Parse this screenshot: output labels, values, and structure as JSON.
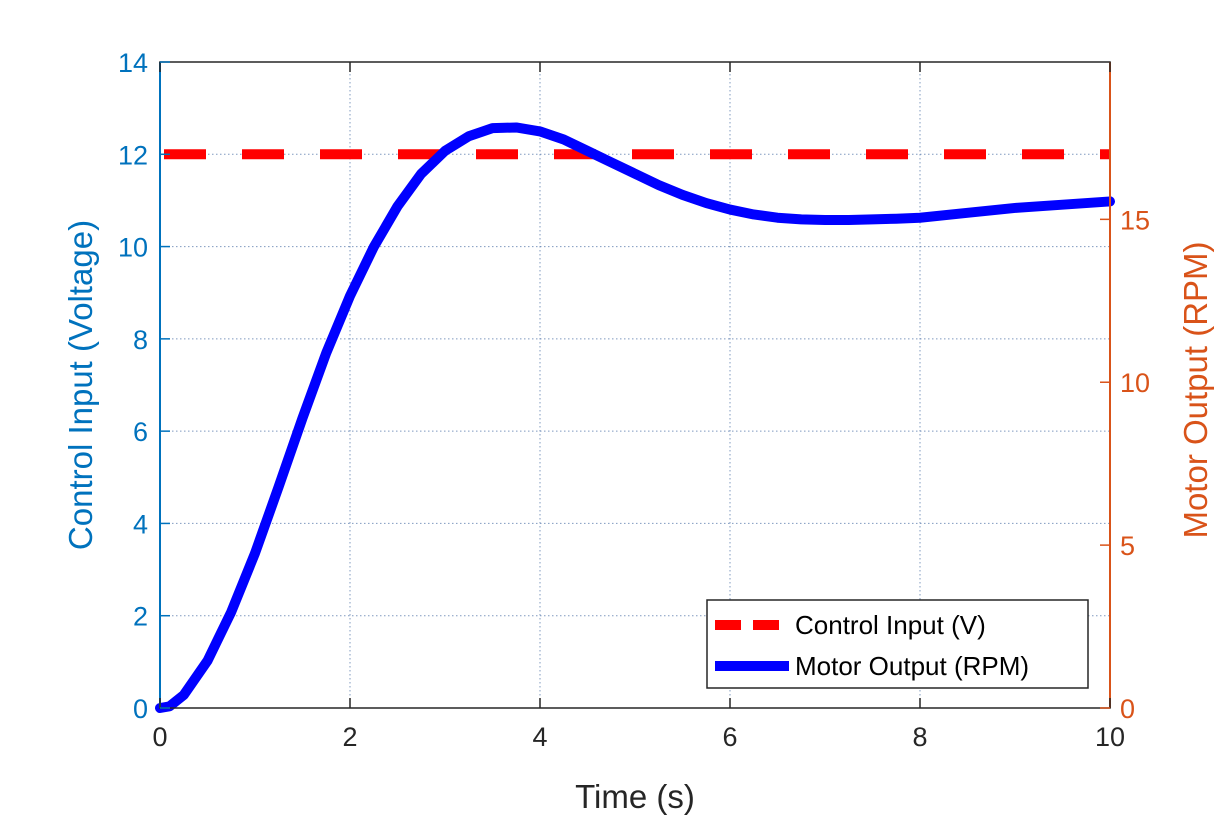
{
  "chart_data": {
    "type": "line",
    "title": "",
    "xlabel": "Time (s)",
    "ylabel_left": "Control Input (Voltage)",
    "ylabel_right": "Motor Output (RPM)",
    "xlim": [
      0,
      10
    ],
    "ylim_left": [
      0,
      14
    ],
    "ylim_right": [
      0,
      19.83
    ],
    "x_ticks": [
      "0",
      "2",
      "4",
      "6",
      "8",
      "10"
    ],
    "y_left_ticks": [
      "0",
      "2",
      "4",
      "6",
      "8",
      "10",
      "12",
      "14"
    ],
    "y_right_ticks": [
      "0",
      "5",
      "10",
      "15"
    ],
    "grid": true,
    "legend_position": "bottom-right",
    "colors": {
      "left_axis": "#0072BD",
      "right_axis": "#D95319",
      "control_input": "#FF0000",
      "motor_output": "#0000FF",
      "grid": "#4A6FA5"
    },
    "series": [
      {
        "name": "Control Input (V)",
        "axis": "left",
        "style": "dashed",
        "x": [
          0,
          10
        ],
        "y": [
          12,
          12
        ]
      },
      {
        "name": "Motor Output (RPM)",
        "axis": "right",
        "style": "solid",
        "x": [
          0,
          0.1,
          0.25,
          0.5,
          0.75,
          1.0,
          1.25,
          1.5,
          1.75,
          2.0,
          2.25,
          2.5,
          2.75,
          3.0,
          3.25,
          3.5,
          3.75,
          4.0,
          4.25,
          4.5,
          4.75,
          5.0,
          5.25,
          5.5,
          5.75,
          6.0,
          6.25,
          6.5,
          6.75,
          7.0,
          7.25,
          7.5,
          7.75,
          8.0,
          8.5,
          9.0,
          9.5,
          10.0
        ],
        "y": [
          0,
          0.05,
          0.4,
          1.45,
          2.95,
          4.75,
          6.8,
          8.9,
          10.9,
          12.65,
          14.15,
          15.4,
          16.4,
          17.1,
          17.55,
          17.8,
          17.82,
          17.7,
          17.45,
          17.1,
          16.75,
          16.4,
          16.05,
          15.75,
          15.5,
          15.3,
          15.15,
          15.05,
          15.0,
          14.98,
          14.98,
          15.0,
          15.02,
          15.05,
          15.2,
          15.35,
          15.45,
          15.55
        ]
      }
    ]
  }
}
